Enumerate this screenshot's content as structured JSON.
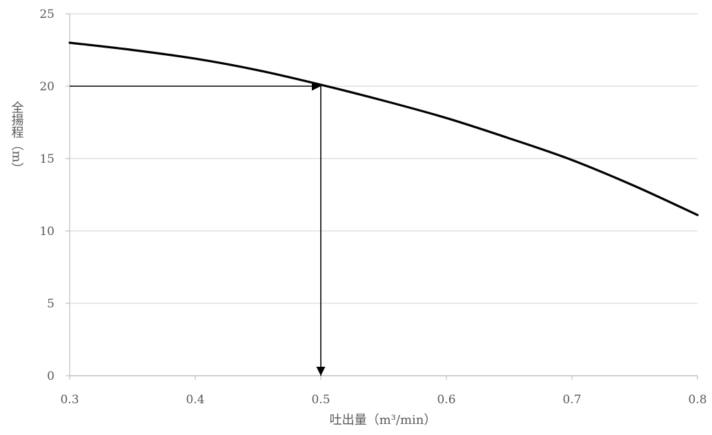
{
  "chart_data": {
    "type": "line",
    "title": "",
    "xlabel": "吐出量（m³/min）",
    "ylabel": "全揚程（m）",
    "xlim": [
      0.3,
      0.8
    ],
    "ylim": [
      0,
      25
    ],
    "x_ticks": [
      "0.3",
      "0.4",
      "0.5",
      "0.6",
      "0.7",
      "0.8"
    ],
    "y_ticks": [
      "0",
      "5",
      "10",
      "15",
      "20",
      "25"
    ],
    "grid": "horizontal",
    "legend": "none",
    "series": [
      {
        "x": [
          0.3,
          0.35,
          0.4,
          0.45,
          0.5,
          0.55,
          0.6,
          0.65,
          0.7,
          0.75,
          0.8
        ],
        "y": [
          23.0,
          22.5,
          21.9,
          21.1,
          20.1,
          19.0,
          17.8,
          16.4,
          14.9,
          13.1,
          11.1
        ]
      }
    ],
    "annotations": [
      {
        "type": "arrow",
        "from": [
          0.3,
          20
        ],
        "to": [
          0.5,
          20
        ]
      },
      {
        "type": "arrow",
        "from": [
          0.5,
          20
        ],
        "to": [
          0.5,
          0
        ]
      }
    ],
    "colors": {
      "line": "#000000",
      "grid": "#d9d9d9",
      "axis": "#bfbfbf",
      "text": "#595959"
    }
  }
}
